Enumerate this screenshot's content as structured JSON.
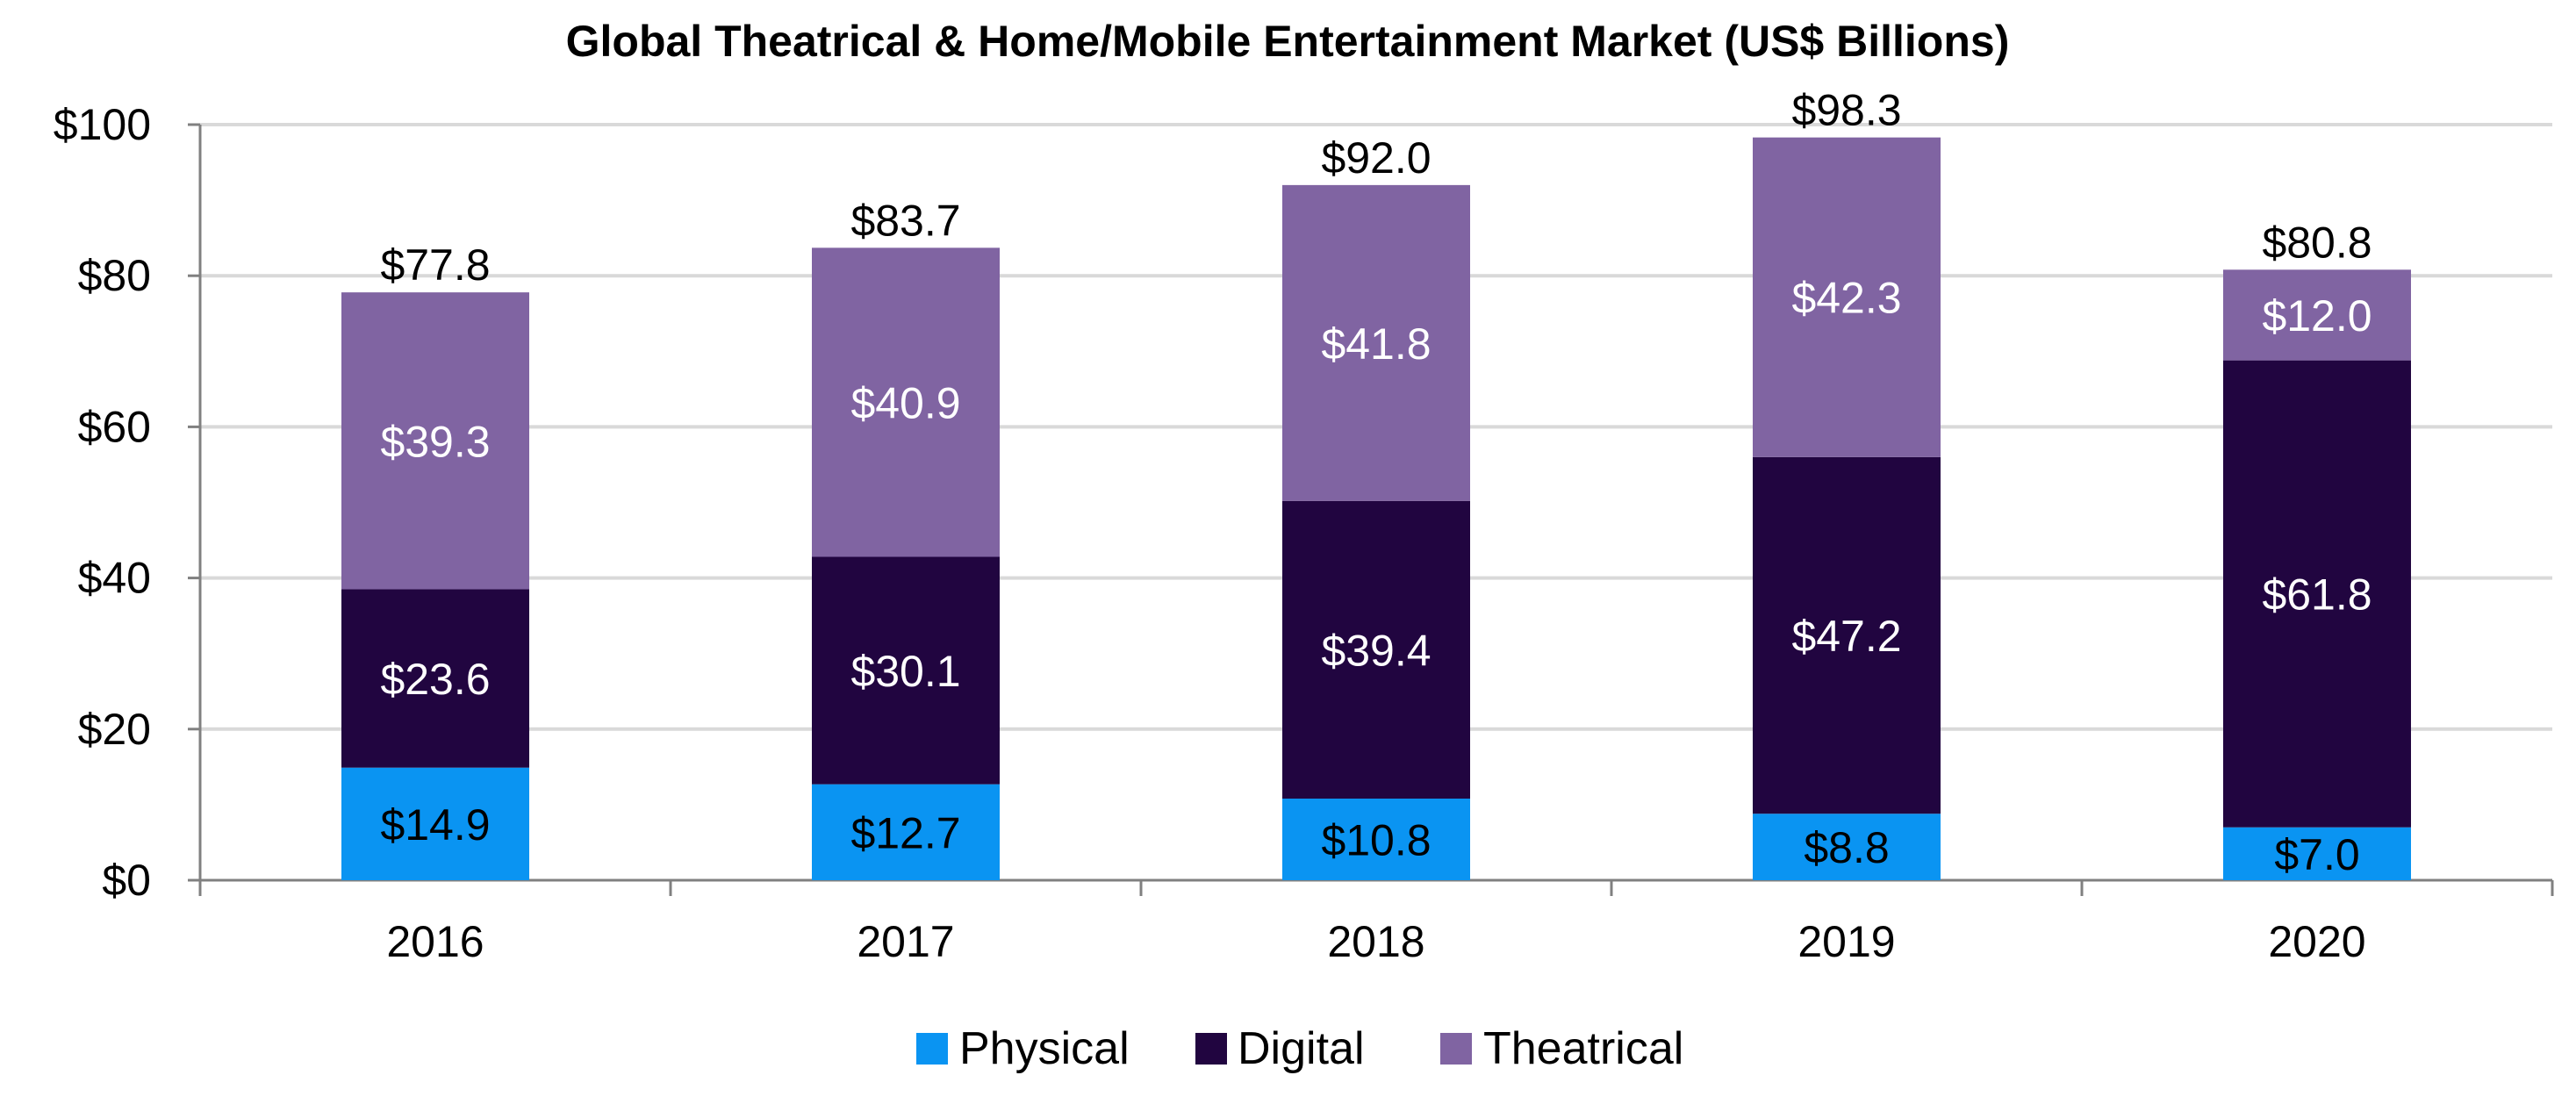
{
  "chart_data": {
    "type": "bar",
    "stacked": true,
    "title": "Global Theatrical & Home/Mobile Entertainment Market (US$ Billions)",
    "xlabel": "",
    "ylabel": "",
    "categories": [
      "2016",
      "2017",
      "2018",
      "2019",
      "2020"
    ],
    "ylim": [
      0,
      100
    ],
    "yticks": [
      0,
      20,
      40,
      60,
      80,
      100
    ],
    "ytick_labels": [
      "$0",
      "$20",
      "$40",
      "$60",
      "$80",
      "$100"
    ],
    "grid": true,
    "legend_position": "bottom",
    "series": [
      {
        "name": "Physical",
        "color": "#0a94f2",
        "label_color": "#000000",
        "values": [
          14.9,
          12.7,
          10.8,
          8.8,
          7.0
        ],
        "labels": [
          "$14.9",
          "$12.7",
          "$10.8",
          "$8.8",
          "$7.0"
        ]
      },
      {
        "name": "Digital",
        "color": "#210540",
        "label_color": "#ffffff",
        "values": [
          23.6,
          30.1,
          39.4,
          47.2,
          61.8
        ],
        "labels": [
          "$23.6",
          "$30.1",
          "$39.4",
          "$47.2",
          "$61.8"
        ]
      },
      {
        "name": "Theatrical",
        "color": "#8064a2",
        "label_color": "#ffffff",
        "values": [
          39.3,
          40.9,
          41.8,
          42.3,
          12.0
        ],
        "labels": [
          "$39.3",
          "$40.9",
          "$41.8",
          "$42.3",
          "$12.0"
        ]
      }
    ],
    "totals": [
      77.8,
      83.7,
      92.0,
      98.3,
      80.8
    ],
    "total_labels": [
      "$77.8",
      "$83.7",
      "$92.0",
      "$98.3",
      "$80.8"
    ]
  }
}
